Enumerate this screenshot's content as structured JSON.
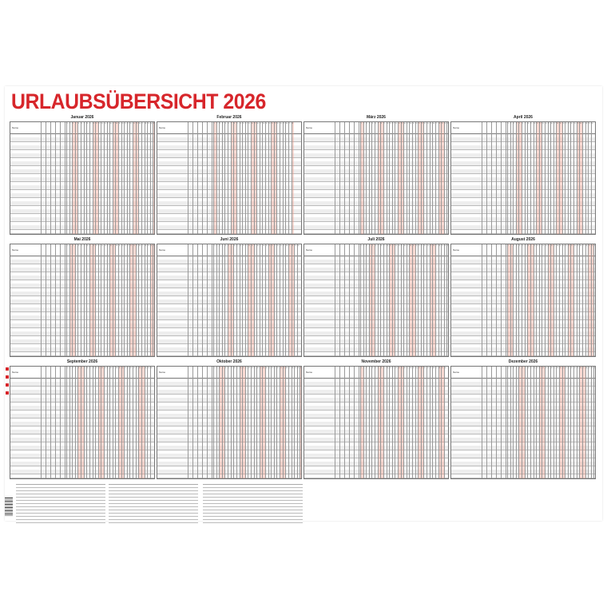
{
  "title": "URLAUBSÜBERSICHT 2026",
  "year": 2026,
  "name_label": "Name",
  "months": [
    {
      "label": "Januar 2026",
      "days": 31
    },
    {
      "label": "Februar 2026",
      "days": 28
    },
    {
      "label": "März 2026",
      "days": 31
    },
    {
      "label": "April 2026",
      "days": 30
    },
    {
      "label": "Mai 2026",
      "days": 31
    },
    {
      "label": "Juni 2026",
      "days": 30
    },
    {
      "label": "Juli 2026",
      "days": 31
    },
    {
      "label": "August 2026",
      "days": 31
    },
    {
      "label": "September 2026",
      "days": 30
    },
    {
      "label": "Oktober 2026",
      "days": 31
    },
    {
      "label": "November 2026",
      "days": 30
    },
    {
      "label": "Dezember 2026",
      "days": 31
    }
  ],
  "colors": {
    "accent": "#d7262b",
    "weekend": "#f4b7a8",
    "row_alt": "#eeeeee"
  }
}
